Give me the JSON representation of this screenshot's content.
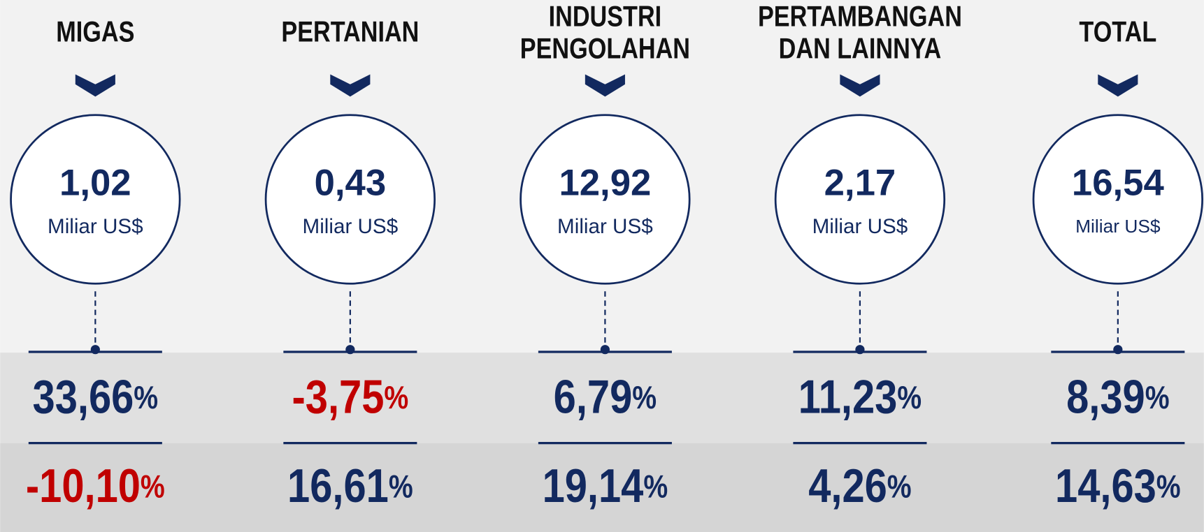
{
  "percent_sign": "%",
  "columns": [
    {
      "title": [
        "MIGAS"
      ],
      "value": "1,02",
      "unit": "Miliar US$",
      "growth": [
        {
          "text": "33,66",
          "color": "#12295f"
        },
        {
          "text": "-10,10",
          "color": "#c00000"
        }
      ]
    },
    {
      "title": [
        "PERTANIAN"
      ],
      "value": "0,43",
      "unit": "Miliar US$",
      "growth": [
        {
          "text": "-3,75",
          "color": "#c00000"
        },
        {
          "text": "16,61",
          "color": "#12295f"
        }
      ]
    },
    {
      "title": [
        "INDUSTRI",
        "PENGOLAHAN"
      ],
      "value": "12,92",
      "unit": "Miliar US$",
      "growth": [
        {
          "text": "6,79",
          "color": "#12295f"
        },
        {
          "text": "19,14",
          "color": "#12295f"
        }
      ]
    },
    {
      "title": [
        "PERTAMBANGAN",
        "DAN LAINNYA"
      ],
      "value": "2,17",
      "unit": "Miliar US$",
      "growth": [
        {
          "text": "11,23",
          "color": "#12295f"
        },
        {
          "text": "4,26",
          "color": "#12295f"
        }
      ]
    },
    {
      "title": [
        "TOTAL"
      ],
      "value": "16,54",
      "unit": "Miliar US$",
      "growth": [
        {
          "text": "8,39",
          "color": "#12295f"
        },
        {
          "text": "14,63",
          "color": "#12295f"
        }
      ]
    }
  ]
}
